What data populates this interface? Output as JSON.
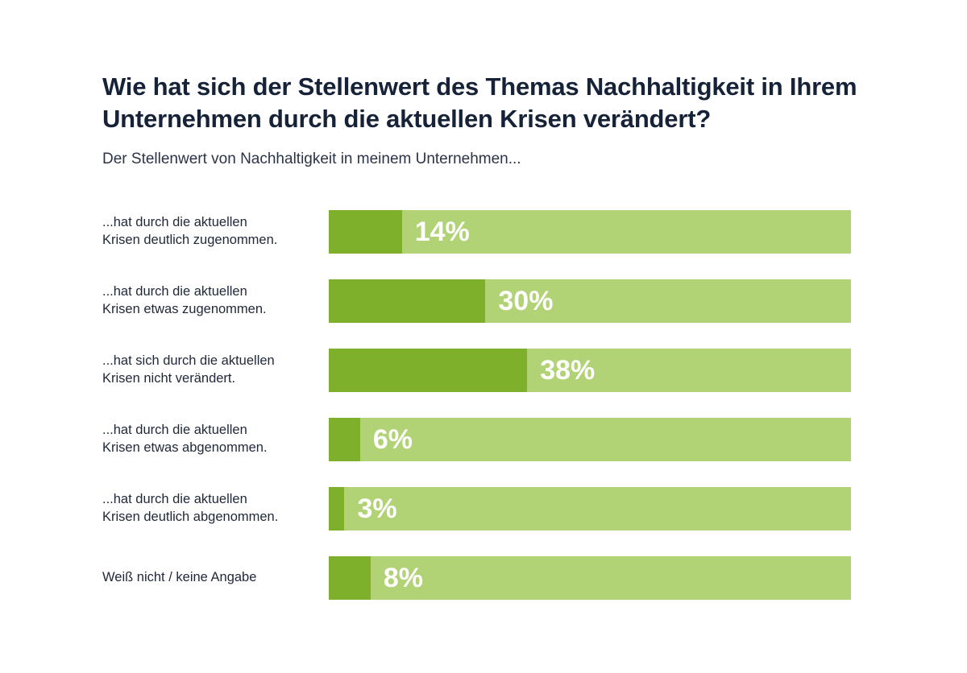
{
  "title": "Wie hat sich der Stellenwert des Themas Nachhaltigkeit in Ihrem Unternehmen durch die aktuellen Krisen verändert?",
  "subtitle": "Der Stellenwert von Nachhaltigkeit in meinem Unternehmen...",
  "colors": {
    "fill": "#7fb02c",
    "background": "#b2d276",
    "value_text": "#ffffff",
    "title_text": "#162238"
  },
  "chart_data": {
    "type": "bar",
    "orientation": "horizontal",
    "title": "Wie hat sich der Stellenwert des Themas Nachhaltigkeit in Ihrem Unternehmen durch die aktuellen Krisen verändert?",
    "subtitle": "Der Stellenwert von Nachhaltigkeit in meinem Unternehmen...",
    "categories": [
      "...hat durch die aktuellen\nKrisen deutlich zugenommen.",
      "...hat durch die aktuellen\nKrisen etwas zugenommen.",
      "...hat sich durch die aktuellen\nKrisen nicht verändert.",
      "...hat durch die aktuellen\nKrisen etwas abgenommen.",
      "...hat durch die aktuellen\nKrisen deutlich abgenommen.",
      "Weiß nicht / keine Angabe"
    ],
    "values": [
      14,
      30,
      38,
      6,
      3,
      8
    ],
    "data_labels": [
      "14%",
      "30%",
      "38%",
      "6%",
      "3%",
      "8%"
    ],
    "unit": "%",
    "xlim": [
      0,
      100
    ],
    "grid": false,
    "legend": "none"
  }
}
